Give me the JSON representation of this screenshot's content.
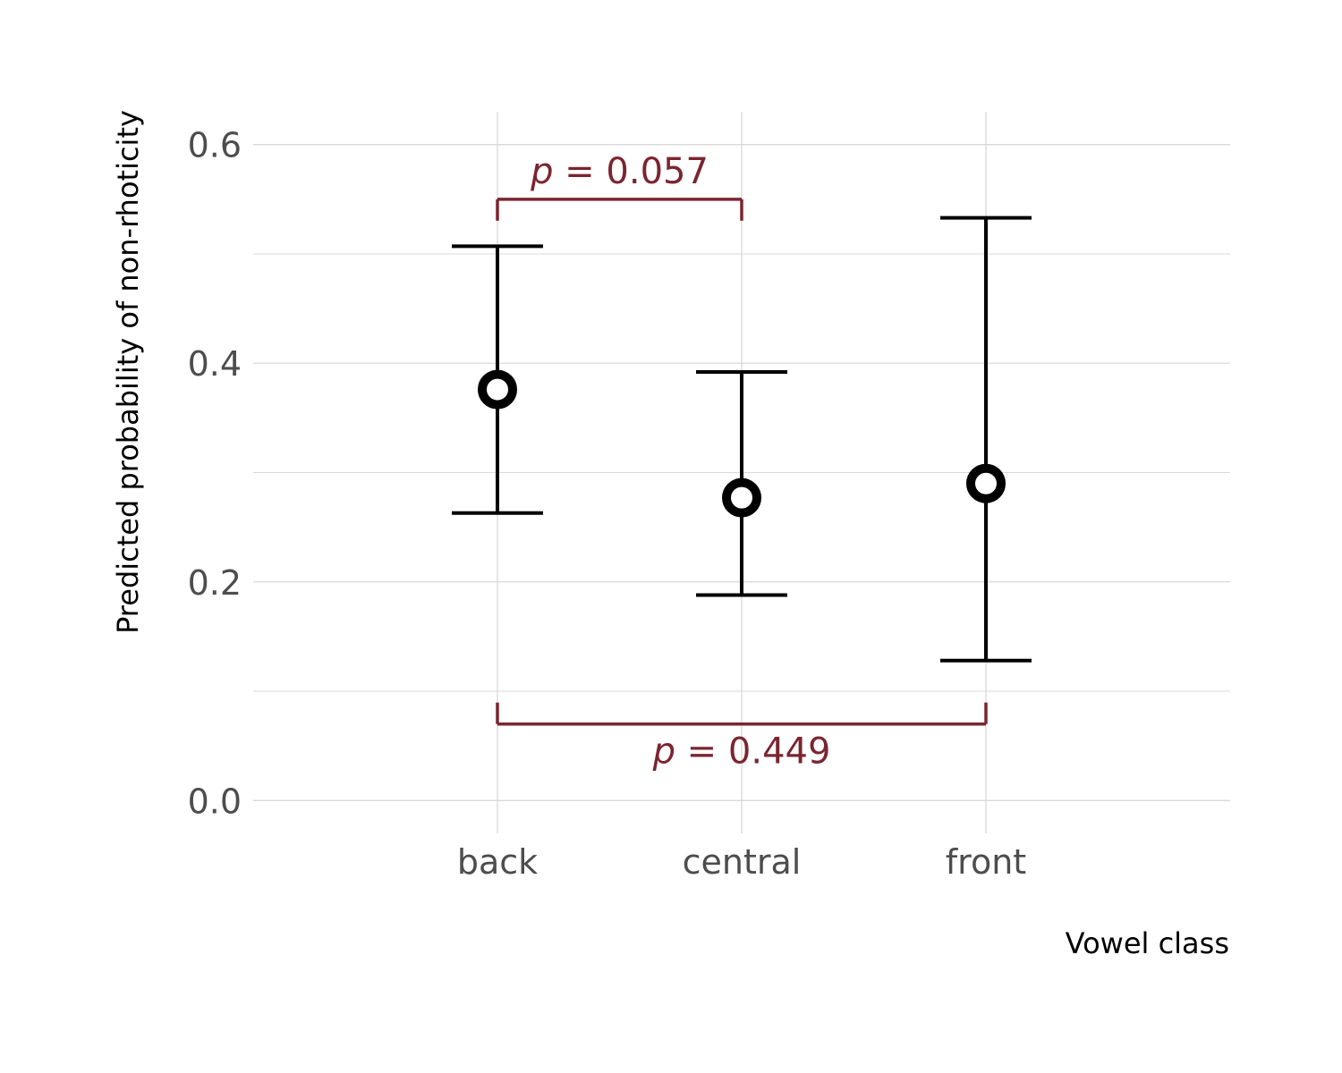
{
  "chart_data": {
    "type": "scatter",
    "xlabel": "Vowel class",
    "ylabel": "Predicted probability of non-rhoticity",
    "categories": [
      "back",
      "central",
      "front"
    ],
    "series": [
      {
        "values": [
          0.376,
          0.277,
          0.29
        ],
        "lower": [
          0.263,
          0.188,
          0.128
        ],
        "upper": [
          0.507,
          0.392,
          0.533
        ]
      }
    ],
    "ylim": [
      -0.03,
      0.63
    ],
    "y_ticks": [
      0.0,
      0.2,
      0.4,
      0.6
    ],
    "y_tick_labels": [
      "0.0",
      "0.2",
      "0.4",
      "0.6"
    ],
    "grid": true,
    "annotations": [
      {
        "from": "back",
        "to": "central",
        "y": 0.55,
        "p_symbol": "p",
        "equals": "=",
        "p_value": "0.057",
        "position": "above"
      },
      {
        "from": "back",
        "to": "front",
        "y": 0.07,
        "p_symbol": "p",
        "equals": "=",
        "p_value": "0.449",
        "position": "below"
      }
    ],
    "colors": {
      "points": "#000000",
      "annotation": "#7a2530",
      "grid": "#d9d9d9",
      "tick_text": "#4d4d4d"
    }
  }
}
